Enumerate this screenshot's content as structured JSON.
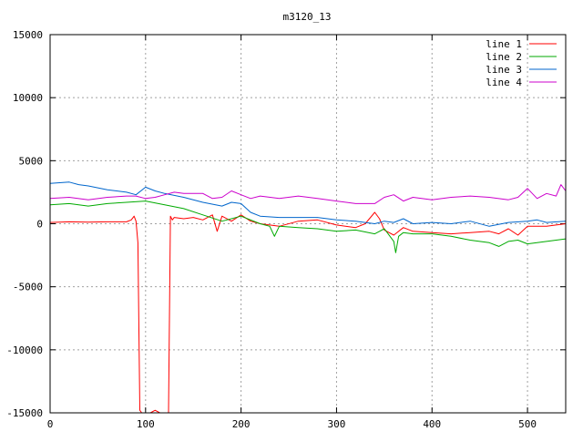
{
  "chart_data": {
    "type": "line",
    "title": "m3120_13",
    "xlabel": "",
    "ylabel": "",
    "xlim": [
      0,
      540
    ],
    "ylim": [
      -15000,
      15000
    ],
    "x_ticks": [
      0,
      100,
      200,
      300,
      400,
      500
    ],
    "y_ticks": [
      -15000,
      -10000,
      -5000,
      0,
      5000,
      10000,
      15000
    ],
    "x_tick_labels": [
      "0",
      "100",
      "200",
      "300",
      "400",
      "500"
    ],
    "y_tick_labels": [
      "-15000",
      "-10000",
      "-5000",
      "0",
      "5000",
      "10000",
      "15000"
    ],
    "grid": true,
    "legend_position": "top-right",
    "series": [
      {
        "name": "line 1",
        "color": "#ff0000",
        "x": [
          0,
          20,
          40,
          60,
          80,
          85,
          88,
          90,
          92,
          94,
          96,
          98,
          100,
          105,
          110,
          115,
          120,
          122,
          124,
          126,
          128,
          130,
          140,
          150,
          160,
          170,
          175,
          180,
          190,
          200,
          210,
          220,
          240,
          260,
          280,
          300,
          320,
          330,
          340,
          345,
          350,
          360,
          370,
          380,
          400,
          420,
          440,
          460,
          470,
          480,
          490,
          500,
          520,
          540
        ],
        "y": [
          100,
          150,
          120,
          150,
          150,
          300,
          600,
          200,
          -1500,
          -14800,
          -15000,
          -15000,
          -15000,
          -15000,
          -14800,
          -15000,
          -15000,
          -15000,
          -15000,
          600,
          300,
          500,
          400,
          500,
          300,
          700,
          -600,
          600,
          200,
          700,
          200,
          0,
          -200,
          200,
          300,
          -100,
          -300,
          0,
          900,
          400,
          -500,
          -900,
          -300,
          -600,
          -700,
          -800,
          -700,
          -600,
          -800,
          -400,
          -900,
          -200,
          -200,
          0
        ]
      },
      {
        "name": "line 2",
        "color": "#00aa00",
        "x": [
          0,
          20,
          40,
          60,
          80,
          100,
          120,
          140,
          160,
          180,
          200,
          220,
          230,
          235,
          240,
          260,
          280,
          300,
          320,
          340,
          350,
          360,
          362,
          365,
          370,
          380,
          400,
          420,
          440,
          460,
          470,
          480,
          490,
          500,
          520,
          540
        ],
        "y": [
          1500,
          1600,
          1400,
          1600,
          1700,
          1800,
          1500,
          1200,
          700,
          200,
          600,
          0,
          -200,
          -1000,
          -200,
          -300,
          -400,
          -600,
          -500,
          -800,
          -400,
          -1400,
          -2300,
          -1000,
          -700,
          -800,
          -800,
          -1000,
          -1300,
          -1500,
          -1800,
          -1400,
          -1300,
          -1600,
          -1400,
          -1200
        ]
      },
      {
        "name": "line 3",
        "color": "#0066cc",
        "x": [
          0,
          20,
          30,
          40,
          60,
          80,
          90,
          100,
          110,
          120,
          140,
          160,
          180,
          190,
          200,
          210,
          220,
          240,
          260,
          280,
          300,
          320,
          340,
          350,
          360,
          370,
          380,
          400,
          420,
          440,
          460,
          480,
          500,
          510,
          520,
          540
        ],
        "y": [
          3200,
          3300,
          3100,
          3000,
          2700,
          2500,
          2300,
          2900,
          2600,
          2400,
          2100,
          1700,
          1400,
          1700,
          1600,
          900,
          600,
          500,
          500,
          500,
          300,
          200,
          0,
          200,
          100,
          400,
          0,
          100,
          0,
          200,
          -200,
          100,
          200,
          300,
          100,
          200
        ]
      },
      {
        "name": "line 4",
        "color": "#cc00cc",
        "x": [
          0,
          20,
          40,
          60,
          80,
          90,
          100,
          110,
          120,
          130,
          140,
          160,
          170,
          180,
          190,
          200,
          210,
          220,
          240,
          260,
          280,
          300,
          320,
          340,
          350,
          360,
          370,
          380,
          400,
          420,
          440,
          460,
          480,
          490,
          500,
          510,
          520,
          530,
          535,
          540
        ],
        "y": [
          2000,
          2100,
          1900,
          2100,
          2200,
          2200,
          2000,
          2100,
          2300,
          2500,
          2400,
          2400,
          2000,
          2100,
          2600,
          2300,
          2000,
          2200,
          2000,
          2200,
          2000,
          1800,
          1600,
          1600,
          2100,
          2300,
          1800,
          2100,
          1900,
          2100,
          2200,
          2100,
          1900,
          2100,
          2800,
          2000,
          2400,
          2200,
          3100,
          2600
        ]
      }
    ]
  }
}
